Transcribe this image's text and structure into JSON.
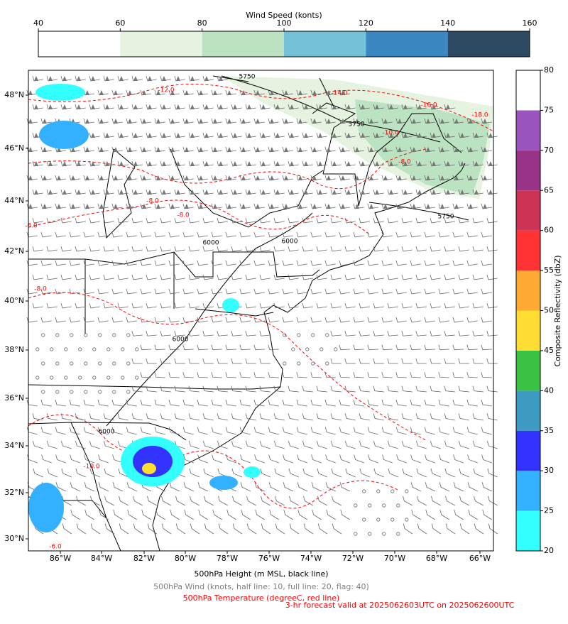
{
  "wind_colorbar": {
    "title": "Wind Speed (konts)",
    "ticks": [
      40,
      60,
      80,
      100,
      120,
      140,
      160
    ],
    "colors": [
      "#ffffff",
      "#e5f3e0",
      "#bbe3c2",
      "#74c2d8",
      "#3b87c2",
      "#2e4a63"
    ]
  },
  "reflectivity_colorbar": {
    "label": "Composite Reflectivity (dbZ)",
    "ticks": [
      20,
      25,
      30,
      35,
      40,
      45,
      50,
      55,
      60,
      65,
      70,
      75,
      80
    ],
    "colors": [
      "#33ffff",
      "#33b0ff",
      "#3333ff",
      "#3d9ac0",
      "#3bc143",
      "#ffdd33",
      "#ffaa33",
      "#ff3333",
      "#cc3355",
      "#993388",
      "#9955bb",
      "#ffffff"
    ]
  },
  "map": {
    "lat_labels": [
      "48°N",
      "46°N",
      "44°N",
      "42°N",
      "40°N",
      "38°N",
      "36°N",
      "34°N",
      "32°N",
      "30°N"
    ],
    "lon_labels": [
      "86°W",
      "84°W",
      "82°W",
      "80°W",
      "78°W",
      "76°W",
      "74°W",
      "72°W",
      "70°W",
      "68°W",
      "66°W"
    ],
    "height_contour_labels": [
      "5750",
      "5750",
      "5750",
      "6000",
      "6000",
      "6000",
      "6000"
    ],
    "temperature_contour_labels": [
      "-12.0",
      "-14.0",
      "-16.0",
      "-18.0",
      "-10.0",
      "-8.0",
      "-8.0",
      "-8.0",
      "-6.0",
      "-8.0",
      "-10.0",
      "-6.0"
    ]
  },
  "captions": {
    "height": "500hPa Height (m MSL, black line)",
    "wind": "500hPa Wind (knots, half line: 10, full line: 20, flag: 40)",
    "temperature": "500hPa Temperature (degreeC, red line)",
    "forecast": "3-hr forecast valid at 2025062603UTC on 2025062600UTC"
  }
}
